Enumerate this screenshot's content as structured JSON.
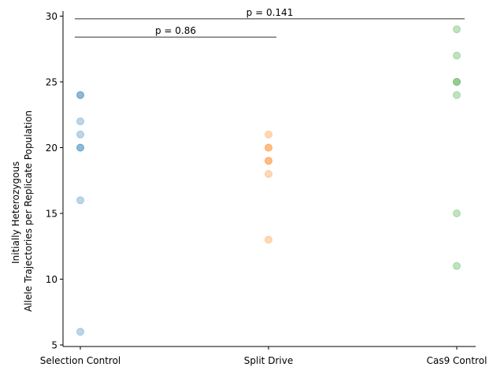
{
  "chart_data": {
    "type": "scatter",
    "categories": [
      "Selection Control",
      "Split Drive",
      "Cas9 Control"
    ],
    "ylabel_lines": [
      "Initially Heterozygous",
      "Allele Trajectories per Replicate Population"
    ],
    "ylim": [
      5,
      30
    ],
    "yticks": [
      5,
      10,
      15,
      20,
      25,
      30
    ],
    "yticks_labels": [
      "5",
      "10",
      "15",
      "20",
      "25",
      "30"
    ],
    "series": [
      {
        "values": [
          24,
          24,
          22,
          21,
          20,
          20,
          16,
          6
        ],
        "color": "#1f77b4"
      },
      {
        "values": [
          21,
          20,
          20,
          19,
          19,
          18,
          13
        ],
        "color": "#ff7f0e"
      },
      {
        "values": [
          29,
          27,
          25,
          25,
          24,
          15,
          11
        ],
        "color": "#2ca02c"
      }
    ],
    "comparisons": [
      {
        "label": "p = 0.86",
        "from": 0,
        "to": 1,
        "y": 28.4
      },
      {
        "label": "p = 0.141",
        "from": 0,
        "to": 2,
        "y": 29.8
      }
    ],
    "grid": false,
    "legend": "none"
  }
}
